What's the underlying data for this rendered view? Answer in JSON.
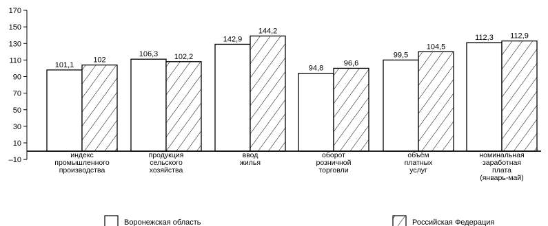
{
  "chart_data": {
    "type": "bar",
    "title": "",
    "xlabel": "",
    "ylabel": "",
    "ylim": [
      -10,
      170
    ],
    "yticks": [
      -10,
      10,
      30,
      50,
      70,
      90,
      110,
      130,
      150,
      170
    ],
    "ytick_labels": [
      "–10",
      "10",
      "30",
      "50",
      "70",
      "90",
      "110",
      "130",
      "150",
      "170"
    ],
    "grid": false,
    "legend_position": "bottom",
    "categories": [
      [
        "индекс",
        "промышленного",
        "производства"
      ],
      [
        "продукция",
        "сельского",
        "хозяйства"
      ],
      [
        "ввод",
        "жилья"
      ],
      [
        "оборот",
        "розничной",
        "торговли"
      ],
      [
        "объём",
        "платных",
        "услуг"
      ],
      [
        "номинальная",
        "заработная",
        "плата",
        "(январь-май)"
      ]
    ],
    "series": [
      {
        "name": "Воронежская область",
        "style": "plain",
        "values": [
          101.1,
          106.3,
          142.9,
          94.8,
          99.5,
          112.3
        ],
        "bar_tops": [
          98,
          111,
          129,
          94,
          110,
          131
        ],
        "labels": [
          "101,1",
          "106,3",
          "142,9",
          "94,8",
          "99,5",
          "112,3"
        ]
      },
      {
        "name": "Российская Федерация",
        "style": "hatched",
        "values": [
          102,
          102.2,
          144.2,
          96.6,
          104.5,
          112.9
        ],
        "bar_tops": [
          104,
          108,
          139,
          100,
          120,
          133
        ],
        "labels": [
          "102",
          "102,2",
          "144,2",
          "96,6",
          "104,5",
          "112,9"
        ]
      }
    ],
    "colors": {
      "stroke": "#000000",
      "fill": "#ffffff"
    }
  }
}
